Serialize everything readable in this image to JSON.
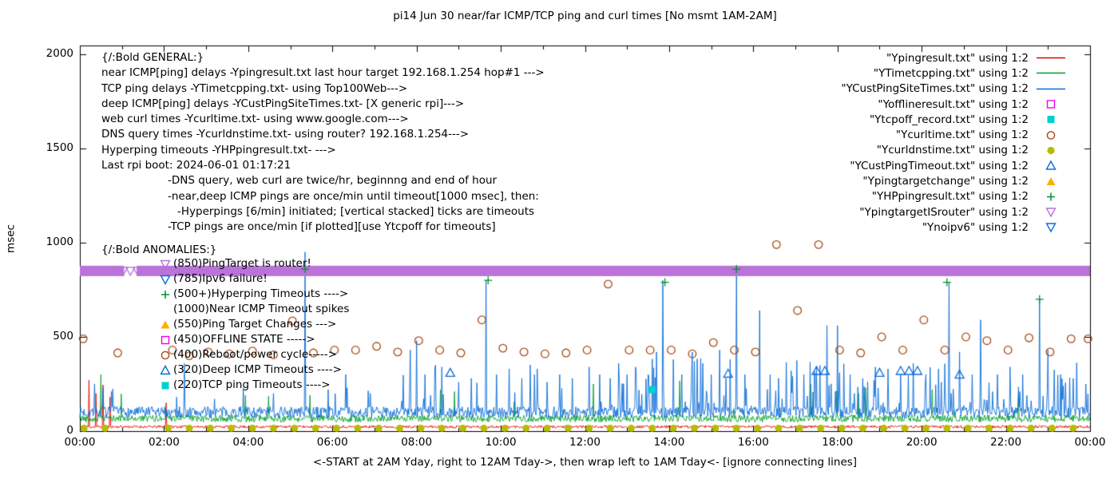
{
  "title": "pi14 Jun 30  near/far ICMP/TCP ping and curl times [No msmt 1AM-2AM]",
  "axes": {
    "y_label": "msec",
    "y_ticks": [
      0,
      500,
      1000,
      1500,
      2000
    ],
    "x_ticks": [
      "00:00",
      "02:00",
      "04:00",
      "06:00",
      "08:00",
      "10:00",
      "12:00",
      "14:00",
      "16:00",
      "18:00",
      "20:00",
      "22:00",
      "00:00"
    ],
    "x_label": "<-START at 2AM Yday, right to 12AM Tday->, then wrap left to 1AM Tday<- [ignore connecting lines]"
  },
  "colors": {
    "red": "#e60000",
    "green": "#00a028",
    "blue": "#0a6cd8",
    "magenta": "#f000f0",
    "cyan": "#00d0d0",
    "rust": "#a84a18",
    "olive": "#b8bc00",
    "orange": "#ffae00",
    "violet": "#b973d9",
    "plus_green": "#00902c",
    "axis": "#000000"
  },
  "legend": {
    "items": [
      {
        "label": "\"Ypingresult.txt\" using 1:2",
        "marker": "line",
        "color": "#e60000"
      },
      {
        "label": "\"YTimetcpping.txt\" using 1:2",
        "marker": "line",
        "color": "#00a028"
      },
      {
        "label": "\"YCustPingSiteTimes.txt\" using 1:2",
        "marker": "line",
        "color": "#0a6cd8"
      },
      {
        "label": "\"Yofflineresult.txt\" using 1:2",
        "marker": "square-open",
        "color": "#f000f0"
      },
      {
        "label": "\"Ytcpoff_record.txt\" using 1:2",
        "marker": "square-filled",
        "color": "#00d0d0"
      },
      {
        "label": "\"Ycurltime.txt\" using 1:2",
        "marker": "circle-open",
        "color": "#a84a18"
      },
      {
        "label": "\"Ycurldnstime.txt\" using 1:2",
        "marker": "circle-filled",
        "color": "#b8bc00"
      },
      {
        "label": "\"YCustPingTimeout.txt\" using 1:2",
        "marker": "triangle-up-open",
        "color": "#0a6cd8"
      },
      {
        "label": "\"Ypingtargetchange\" using 1:2",
        "marker": "triangle-up-filled",
        "color": "#ffae00"
      },
      {
        "label": "\"YHPpingresult.txt\" using 1:2",
        "marker": "plus",
        "color": "#00902c"
      },
      {
        "label": "\"YpingtargetISrouter\" using 1:2",
        "marker": "triangle-down-open",
        "color": "#b973d9"
      },
      {
        "label": "\"Ynoipv6\" using 1:2",
        "marker": "triangle-down-open",
        "color": "#0a6cd8"
      }
    ]
  },
  "annotations": {
    "general_header": "{/:Bold GENERAL:}",
    "general": [
      {
        "text": "near ICMP[ping] delays -Ypingresult.txt last hour target 192.168.1.254 hop#1 --->",
        "indent": 0
      },
      {
        "text": "TCP ping delays -YTimetcpping.txt- using Top100Web--->",
        "indent": 0
      },
      {
        "text": "deep ICMP[ping] delays -YCustPingSiteTimes.txt- [X generic rpi]--->",
        "indent": 0
      },
      {
        "text": "web curl times -Ycurltime.txt- using www.google.com--->",
        "indent": 0
      },
      {
        "text": "DNS query times -Ycurldnstime.txt- using router? 192.168.1.254--->",
        "indent": 0
      },
      {
        "text": "Hyperping timeouts -YHPpingresult.txt- --->",
        "indent": 0
      },
      {
        "text": "Last rpi boot: 2024-06-01 01:17:21",
        "indent": 0
      },
      {
        "text": "-DNS query, web curl are twice/hr, beginnng and end of hour",
        "indent": 1
      },
      {
        "text": "-near,deep ICMP pings are once/min until timeout[1000 msec], then:",
        "indent": 1
      },
      {
        "text": "-Hyperpings [6/min] initiated; [vertical stacked] ticks are timeouts",
        "indent": 2
      },
      {
        "text": "-TCP pings are once/min [if plotted][use Ytcpoff for timeouts]",
        "indent": 1
      }
    ],
    "anomalies_header": "{/:Bold ANOMALIES:}",
    "anomalies": [
      {
        "marker": "triangle-down-open",
        "color": "#b973d9",
        "text": "(850)PingTarget is router!"
      },
      {
        "marker": "triangle-down-open",
        "color": "#0a6cd8",
        "text": "(785)Ipv6 failure!"
      },
      {
        "marker": "plus",
        "color": "#00902c",
        "text": "(500+)Hyperping Timeouts ---->"
      },
      {
        "marker": "none",
        "color": "#000000",
        "text": "(1000)Near ICMP Timeout spikes"
      },
      {
        "marker": "triangle-up-filled",
        "color": "#ffae00",
        "text": "(550)Ping Target Changes --->"
      },
      {
        "marker": "square-open",
        "color": "#f000f0",
        "text": "(450)OFFLINE STATE ----->"
      },
      {
        "marker": "circle-open",
        "color": "#a84a18",
        "text": "(400)Reboot/power cycle----->"
      },
      {
        "marker": "triangle-up-open",
        "color": "#0a6cd8",
        "text": "(320)Deep ICMP Timeouts ---->"
      },
      {
        "marker": "square-filled",
        "color": "#00d0d0",
        "text": "(220)TCP ping Timeouts ---->"
      }
    ]
  },
  "chart_data": {
    "type": "line",
    "x_unit": "hours_of_day",
    "x_range": [
      0,
      24
    ],
    "y_range": [
      0,
      2047
    ],
    "ylabel": "msec",
    "grid": false,
    "legend_position": "top-right",
    "series": [
      {
        "name": "Ypingresult.txt",
        "kind": "line",
        "color": "#e60000",
        "baseline": 16,
        "noise": 14,
        "spikes": [
          [
            0.22,
            270
          ],
          [
            0.38,
            200
          ],
          [
            0.55,
            245
          ],
          [
            0.72,
            180
          ],
          [
            2.05,
            150
          ]
        ]
      },
      {
        "name": "YTimetcpping.txt",
        "kind": "line",
        "color": "#00a028",
        "baseline": 48,
        "noise": 38,
        "spike_prob": 0.018,
        "spike_base": 110,
        "spike_max": 160,
        "spikes": [
          [
            0.5,
            300
          ],
          [
            8.9,
            210
          ],
          [
            12.2,
            250
          ],
          [
            18.5,
            200
          ]
        ]
      },
      {
        "name": "YCustPingSiteTimes.txt",
        "kind": "line",
        "color": "#0a6cd8",
        "baseline": 70,
        "noise": 60,
        "segments": [
          [
            0,
            7.5,
            0.035
          ],
          [
            7.5,
            12,
            0.11
          ],
          [
            12,
            24,
            0.17
          ]
        ],
        "spike_base": 120,
        "spike_max": 270,
        "spikes": [
          [
            0.35,
            250
          ],
          [
            0.55,
            230
          ],
          [
            0.75,
            210
          ],
          [
            2.3,
            180
          ],
          [
            3.2,
            170
          ],
          [
            4.6,
            200
          ],
          [
            5.35,
            950
          ],
          [
            5.9,
            220
          ],
          [
            6.35,
            230
          ],
          [
            6.9,
            200
          ],
          [
            7.85,
            430
          ],
          [
            8.0,
            480
          ],
          [
            8.2,
            300
          ],
          [
            8.45,
            350
          ],
          [
            8.6,
            340
          ],
          [
            9.0,
            260
          ],
          [
            9.3,
            280
          ],
          [
            9.65,
            800
          ],
          [
            9.9,
            300
          ],
          [
            10.2,
            330
          ],
          [
            10.5,
            280
          ],
          [
            10.8,
            300
          ],
          [
            11.1,
            260
          ],
          [
            11.4,
            300
          ],
          [
            11.7,
            280
          ],
          [
            12.1,
            340
          ],
          [
            12.35,
            300
          ],
          [
            12.6,
            280
          ],
          [
            12.8,
            360
          ],
          [
            13.0,
            300
          ],
          [
            13.2,
            340
          ],
          [
            13.5,
            300
          ],
          [
            13.7,
            420
          ],
          [
            13.85,
            800
          ],
          [
            14.1,
            380
          ],
          [
            14.3,
            300
          ],
          [
            14.55,
            420
          ],
          [
            14.8,
            360
          ],
          [
            15.0,
            300
          ],
          [
            15.2,
            430
          ],
          [
            15.45,
            380
          ],
          [
            15.6,
            860
          ],
          [
            15.8,
            300
          ],
          [
            16.15,
            640
          ],
          [
            16.4,
            300
          ],
          [
            16.6,
            280
          ],
          [
            16.9,
            320
          ],
          [
            17.2,
            300
          ],
          [
            17.5,
            340
          ],
          [
            17.75,
            560
          ],
          [
            18.0,
            560
          ],
          [
            18.3,
            300
          ],
          [
            18.6,
            280
          ],
          [
            18.9,
            340
          ],
          [
            19.2,
            330
          ],
          [
            19.5,
            300
          ],
          [
            19.8,
            360
          ],
          [
            20.1,
            300
          ],
          [
            20.4,
            330
          ],
          [
            20.65,
            790
          ],
          [
            20.9,
            420
          ],
          [
            21.2,
            300
          ],
          [
            21.4,
            590
          ],
          [
            21.8,
            300
          ],
          [
            22.1,
            340
          ],
          [
            22.4,
            300
          ],
          [
            22.8,
            700
          ],
          [
            23.0,
            430
          ],
          [
            23.3,
            300
          ],
          [
            23.6,
            280
          ],
          [
            23.9,
            250
          ]
        ]
      },
      {
        "name": "Ycurltime.txt",
        "kind": "scatter",
        "marker": "circle-open",
        "color": "#a84a18",
        "points": [
          [
            0.08,
            490
          ],
          [
            0.9,
            415
          ],
          [
            2.2,
            430
          ],
          [
            2.6,
            400
          ],
          [
            3.05,
            420
          ],
          [
            3.55,
            410
          ],
          [
            4.1,
            425
          ],
          [
            4.6,
            405
          ],
          [
            5.05,
            585
          ],
          [
            5.55,
            415
          ],
          [
            6.05,
            430
          ],
          [
            6.55,
            430
          ],
          [
            7.05,
            450
          ],
          [
            7.55,
            420
          ],
          [
            8.05,
            480
          ],
          [
            8.55,
            430
          ],
          [
            9.05,
            415
          ],
          [
            9.55,
            590
          ],
          [
            10.05,
            440
          ],
          [
            10.55,
            420
          ],
          [
            11.05,
            410
          ],
          [
            11.55,
            415
          ],
          [
            12.05,
            430
          ],
          [
            12.55,
            780
          ],
          [
            13.05,
            430
          ],
          [
            13.55,
            430
          ],
          [
            14.05,
            430
          ],
          [
            14.55,
            410
          ],
          [
            15.05,
            470
          ],
          [
            15.55,
            430
          ],
          [
            16.05,
            420
          ],
          [
            16.55,
            990
          ],
          [
            17.05,
            640
          ],
          [
            17.55,
            990
          ],
          [
            18.05,
            430
          ],
          [
            18.55,
            415
          ],
          [
            19.05,
            500
          ],
          [
            19.55,
            430
          ],
          [
            20.05,
            590
          ],
          [
            20.55,
            430
          ],
          [
            21.05,
            500
          ],
          [
            21.55,
            480
          ],
          [
            22.05,
            430
          ],
          [
            22.55,
            495
          ],
          [
            23.05,
            420
          ],
          [
            23.55,
            490
          ],
          [
            23.95,
            490
          ]
        ]
      },
      {
        "name": "Ycurldnstime.txt",
        "kind": "scatter-periodic",
        "marker": "circle-filled",
        "color": "#b8bc00",
        "y": 15,
        "start_hour": 0.1,
        "interval_hours": 0.5,
        "skip_hours": [
          1,
          2
        ]
      },
      {
        "name": "YCustPingTimeout.txt",
        "kind": "scatter",
        "marker": "triangle-up-open",
        "color": "#0a6cd8",
        "points": [
          [
            8.8,
            310
          ],
          [
            15.4,
            305
          ],
          [
            17.5,
            320
          ],
          [
            17.7,
            320
          ],
          [
            19.0,
            310
          ],
          [
            19.5,
            320
          ],
          [
            19.7,
            320
          ],
          [
            19.9,
            320
          ],
          [
            20.9,
            300
          ]
        ]
      },
      {
        "name": "Ytcpoff_record.txt",
        "kind": "scatter",
        "marker": "square-filled",
        "color": "#00d0d0",
        "points": [
          [
            13.6,
            220
          ]
        ]
      },
      {
        "name": "YHPpingresult.txt",
        "kind": "scatter",
        "marker": "plus",
        "color": "#00902c",
        "points": [
          [
            5.35,
            860
          ],
          [
            9.7,
            800
          ],
          [
            13.9,
            790
          ],
          [
            15.6,
            860
          ],
          [
            20.6,
            790
          ],
          [
            22.8,
            700
          ]
        ]
      },
      {
        "name": "YpingtargetISrouter",
        "kind": "band-of-markers",
        "marker": "triangle-down-open",
        "color": "#b973d9",
        "y": 850,
        "x_span": [
          0,
          24
        ],
        "gap": [
          1.05,
          1.35
        ]
      }
    ]
  }
}
